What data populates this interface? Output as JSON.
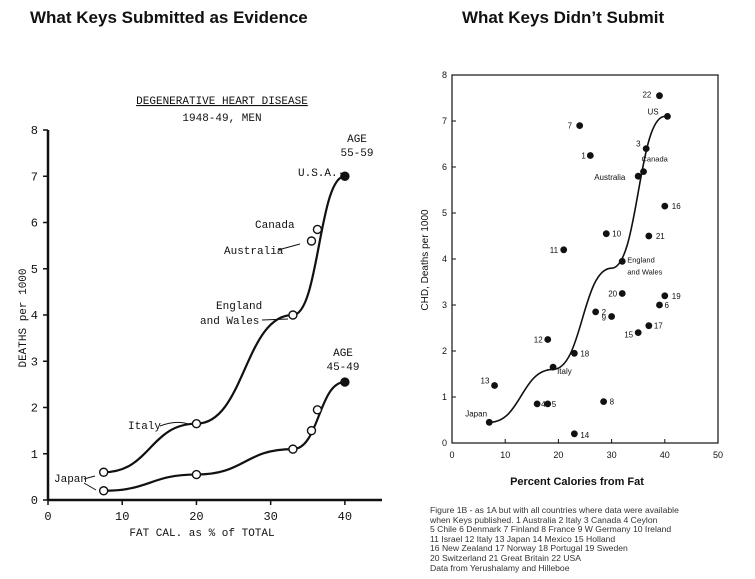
{
  "headings": {
    "left": "What Keys Submitted as Evidence",
    "right": "What Keys Didn’t Submit"
  },
  "chart_data": [
    {
      "type": "line",
      "title": "DEGENERATIVE HEART DISEASE",
      "subtitle": "1948-49, MEN",
      "xlabel": "FAT CAL. as % of TOTAL",
      "ylabel": "DEATHS per 1000",
      "xlim": [
        0,
        45
      ],
      "ylim": [
        0,
        8
      ],
      "xticks": [
        0,
        10,
        20,
        30,
        40
      ],
      "yticks": [
        0,
        1,
        2,
        3,
        4,
        5,
        6,
        7,
        8
      ],
      "series": [
        {
          "name": "AGE 55-59",
          "points": [
            {
              "country": "Japan",
              "x": 7.5,
              "y": 0.6
            },
            {
              "country": "Italy",
              "x": 20,
              "y": 1.65
            },
            {
              "country": "England and Wales",
              "x": 33,
              "y": 4.0
            },
            {
              "country": "Australia",
              "x": 35.5,
              "y": 5.6
            },
            {
              "country": "Canada",
              "x": 36.3,
              "y": 5.85
            },
            {
              "country": "U.S.A.",
              "x": 40,
              "y": 7.0
            }
          ]
        },
        {
          "name": "AGE 45-49",
          "points": [
            {
              "country": "Japan",
              "x": 7.5,
              "y": 0.2
            },
            {
              "country": "Italy",
              "x": 20,
              "y": 0.55
            },
            {
              "country": "England and Wales",
              "x": 33,
              "y": 1.1
            },
            {
              "country": "Australia",
              "x": 35.5,
              "y": 1.5
            },
            {
              "country": "Canada",
              "x": 36.3,
              "y": 1.95
            },
            {
              "country": "U.S.A.",
              "x": 40,
              "y": 2.55
            }
          ]
        }
      ],
      "annotations": {
        "age_old": [
          "AGE",
          "55-59"
        ],
        "age_young": [
          "AGE",
          "45-49"
        ],
        "usa": "U.S.A.",
        "canada": "Canada",
        "australia": "Australia",
        "england": [
          "England",
          "and Wales"
        ],
        "italy": "Italy",
        "japan": "Japan"
      }
    },
    {
      "type": "scatter",
      "xlabel": "Percent Calories from Fat",
      "ylabel": "CHD, Deaths per 1000",
      "xlim": [
        0,
        50
      ],
      "ylim": [
        0,
        8
      ],
      "xticks": [
        0,
        10,
        20,
        30,
        40,
        50
      ],
      "yticks": [
        0,
        1,
        2,
        3,
        4,
        5,
        6,
        7,
        8
      ],
      "fit_curve": [
        [
          7,
          0.45
        ],
        [
          19,
          1.6
        ],
        [
          30,
          3.8
        ],
        [
          40,
          7.1
        ]
      ],
      "points": [
        {
          "label": "Japan",
          "x": 7,
          "y": 0.45
        },
        {
          "label": "13",
          "x": 8,
          "y": 1.25
        },
        {
          "label": "4",
          "x": 16,
          "y": 0.85
        },
        {
          "label": "5",
          "x": 18,
          "y": 0.85
        },
        {
          "label": "14",
          "x": 23,
          "y": 0.2
        },
        {
          "label": "8",
          "x": 28.5,
          "y": 0.9
        },
        {
          "label": "Italy",
          "x": 19,
          "y": 1.65
        },
        {
          "label": "18",
          "x": 23,
          "y": 1.95
        },
        {
          "label": "12",
          "x": 18,
          "y": 2.25
        },
        {
          "label": "2",
          "x": 27,
          "y": 2.85
        },
        {
          "label": "9",
          "x": 30,
          "y": 2.75
        },
        {
          "label": "15",
          "x": 35,
          "y": 2.4
        },
        {
          "label": "17",
          "x": 37,
          "y": 2.55
        },
        {
          "label": "20",
          "x": 32,
          "y": 3.25
        },
        {
          "label": "6",
          "x": 39,
          "y": 3.0
        },
        {
          "label": "19",
          "x": 40,
          "y": 3.2
        },
        {
          "label": "England and Wales",
          "x": 32,
          "y": 3.95
        },
        {
          "label": "11",
          "x": 21,
          "y": 4.2
        },
        {
          "label": "10",
          "x": 29,
          "y": 4.55
        },
        {
          "label": "21",
          "x": 37,
          "y": 4.5
        },
        {
          "label": "16",
          "x": 40,
          "y": 5.15
        },
        {
          "label": "Australia",
          "x": 35,
          "y": 5.8
        },
        {
          "label": "Canada",
          "x": 36,
          "y": 5.9
        },
        {
          "label": "1",
          "x": 26,
          "y": 6.25
        },
        {
          "label": "3",
          "x": 36.5,
          "y": 6.4
        },
        {
          "label": "7",
          "x": 24,
          "y": 6.9
        },
        {
          "label": "US",
          "x": 40.5,
          "y": 7.1
        },
        {
          "label": "22",
          "x": 39,
          "y": 7.55
        }
      ],
      "caption": [
        "Figure 1B - as 1A but with all countries where data were available",
        "when Keys published. 1 Australia 2 Italy 3 Canada 4 Ceylon",
        "5 Chile 6 Denmark 7 Finland 8 France 9 W Germany 10 Ireland",
        "11 Israel 12 Italy 13 Japan 14 Mexico 15 Holland",
        "16 New Zealand 17 Norway 18 Portugal 19 Sweden",
        "20 Switzerland 21 Great Britain 22 USA",
        "Data from Yerushalamy and Hilleboe"
      ]
    }
  ]
}
